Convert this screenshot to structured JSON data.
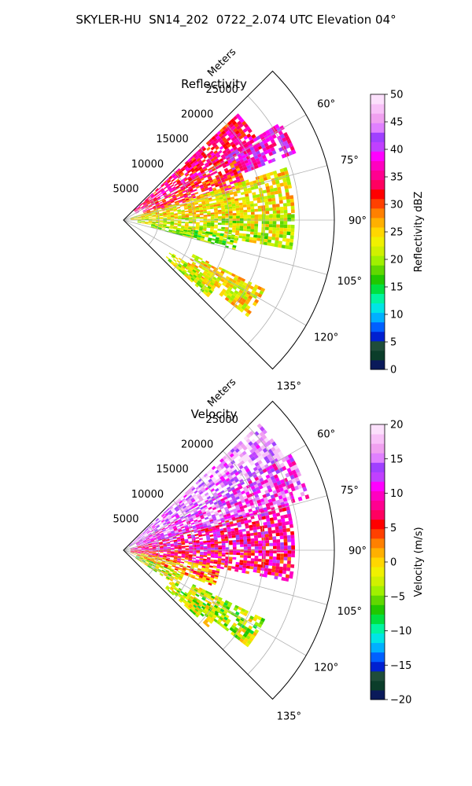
{
  "figure": {
    "title": "SKYLER-HU  SN14_202  0722_2.074 UTC Elevation 04°"
  },
  "chart_data": [
    {
      "type": "heatmap",
      "subtype": "polar-sector-radar-ppi",
      "title": "Reflectivity",
      "radial_axis_label": "Meters",
      "radial_ticks": [
        "5000",
        "10000",
        "15000",
        "20000",
        "25000"
      ],
      "radial_tick_values": [
        5000,
        10000,
        15000,
        20000,
        25000
      ],
      "radial_max": 30000,
      "azimuth_ticks": [
        "60°",
        "75°",
        "90°",
        "105°",
        "120°",
        "135°"
      ],
      "azimuth_tick_values": [
        60,
        75,
        90,
        105,
        120,
        135
      ],
      "azimuth_range": [
        45,
        135
      ],
      "grid": true,
      "colorbar": {
        "label": "Reflectivity dBZ",
        "ticks": [
          "0",
          "5",
          "10",
          "15",
          "20",
          "25",
          "30",
          "35",
          "40",
          "45",
          "50"
        ],
        "range": [
          0,
          50
        ],
        "colors": [
          "#0a1a5a",
          "#0b3d2a",
          "#1f4d3a",
          "#0020d0",
          "#0060ff",
          "#00b0ff",
          "#00e5e5",
          "#00f5a0",
          "#00e040",
          "#20c800",
          "#60d800",
          "#a0f000",
          "#d0f000",
          "#f0f000",
          "#ffd700",
          "#ffb000",
          "#ff8000",
          "#ff4000",
          "#ff0000",
          "#ff0060",
          "#ff0090",
          "#ff00c0",
          "#ff00ff",
          "#c040ff",
          "#a040ff",
          "#e080ff",
          "#f0a0f0",
          "#f8c0f8",
          "#fce0fc"
        ]
      },
      "echo_regions": [
        {
          "az": [
            47,
            62
          ],
          "r": [
            2000,
            22000
          ],
          "value": 34
        },
        {
          "az": [
            58,
            68
          ],
          "r": [
            17000,
            26000
          ],
          "value": 38
        },
        {
          "az": [
            62,
            74
          ],
          "r": [
            3000,
            18000
          ],
          "value": 32
        },
        {
          "az": [
            72,
            88
          ],
          "r": [
            1000,
            24000
          ],
          "value": 24
        },
        {
          "az": [
            88,
            100
          ],
          "r": [
            2000,
            24000
          ],
          "value": 22
        },
        {
          "az": [
            98,
            105
          ],
          "r": [
            4000,
            16000
          ],
          "value": 20
        },
        {
          "az": [
            116,
            128
          ],
          "r": [
            11000,
            22000
          ],
          "value": 24
        },
        {
          "az": [
            124,
            132
          ],
          "r": [
            8000,
            16000
          ],
          "value": 22
        }
      ]
    },
    {
      "type": "heatmap",
      "subtype": "polar-sector-radar-ppi",
      "title": "Velocity",
      "radial_axis_label": "Meters",
      "radial_ticks": [
        "5000",
        "10000",
        "15000",
        "20000",
        "25000"
      ],
      "radial_tick_values": [
        5000,
        10000,
        15000,
        20000,
        25000
      ],
      "radial_max": 30000,
      "azimuth_ticks": [
        "60°",
        "75°",
        "90°",
        "105°",
        "120°",
        "135°"
      ],
      "azimuth_tick_values": [
        60,
        75,
        90,
        105,
        120,
        135
      ],
      "azimuth_range": [
        45,
        135
      ],
      "grid": true,
      "colorbar": {
        "label": "Velocity (m/s)",
        "ticks": [
          "−20",
          "−15",
          "−10",
          "−5",
          "0",
          "5",
          "10",
          "15",
          "20"
        ],
        "range": [
          -20,
          20
        ],
        "colors": [
          "#0a1a5a",
          "#0b3d2a",
          "#1f4d3a",
          "#0020d0",
          "#0060ff",
          "#00b0ff",
          "#00e5e5",
          "#00f5a0",
          "#00e040",
          "#20c800",
          "#60d800",
          "#a0f000",
          "#d0f000",
          "#f0f000",
          "#ffd700",
          "#ffb000",
          "#ff8000",
          "#ff4000",
          "#ff0000",
          "#ff0060",
          "#ff0090",
          "#ff00c0",
          "#ff00ff",
          "#c040ff",
          "#a040ff",
          "#e080ff",
          "#f0a0f0",
          "#f8c0f8",
          "#fce0fc"
        ]
      },
      "echo_regions": [
        {
          "az": [
            47,
            60
          ],
          "r": [
            1000,
            26000
          ],
          "value": 16
        },
        {
          "az": [
            60,
            74
          ],
          "r": [
            2000,
            27000
          ],
          "value": 13
        },
        {
          "az": [
            74,
            90
          ],
          "r": [
            1000,
            24000
          ],
          "value": 9
        },
        {
          "az": [
            90,
            100
          ],
          "r": [
            1000,
            24000
          ],
          "value": 7
        },
        {
          "az": [
            100,
            112
          ],
          "r": [
            1000,
            14000
          ],
          "value": 2
        },
        {
          "az": [
            112,
            124
          ],
          "r": [
            2000,
            9000
          ],
          "value": -3
        },
        {
          "az": [
            116,
            128
          ],
          "r": [
            11000,
            22000
          ],
          "value": -3
        },
        {
          "az": [
            124,
            132
          ],
          "r": [
            8000,
            16000
          ],
          "value": -3
        }
      ]
    }
  ]
}
